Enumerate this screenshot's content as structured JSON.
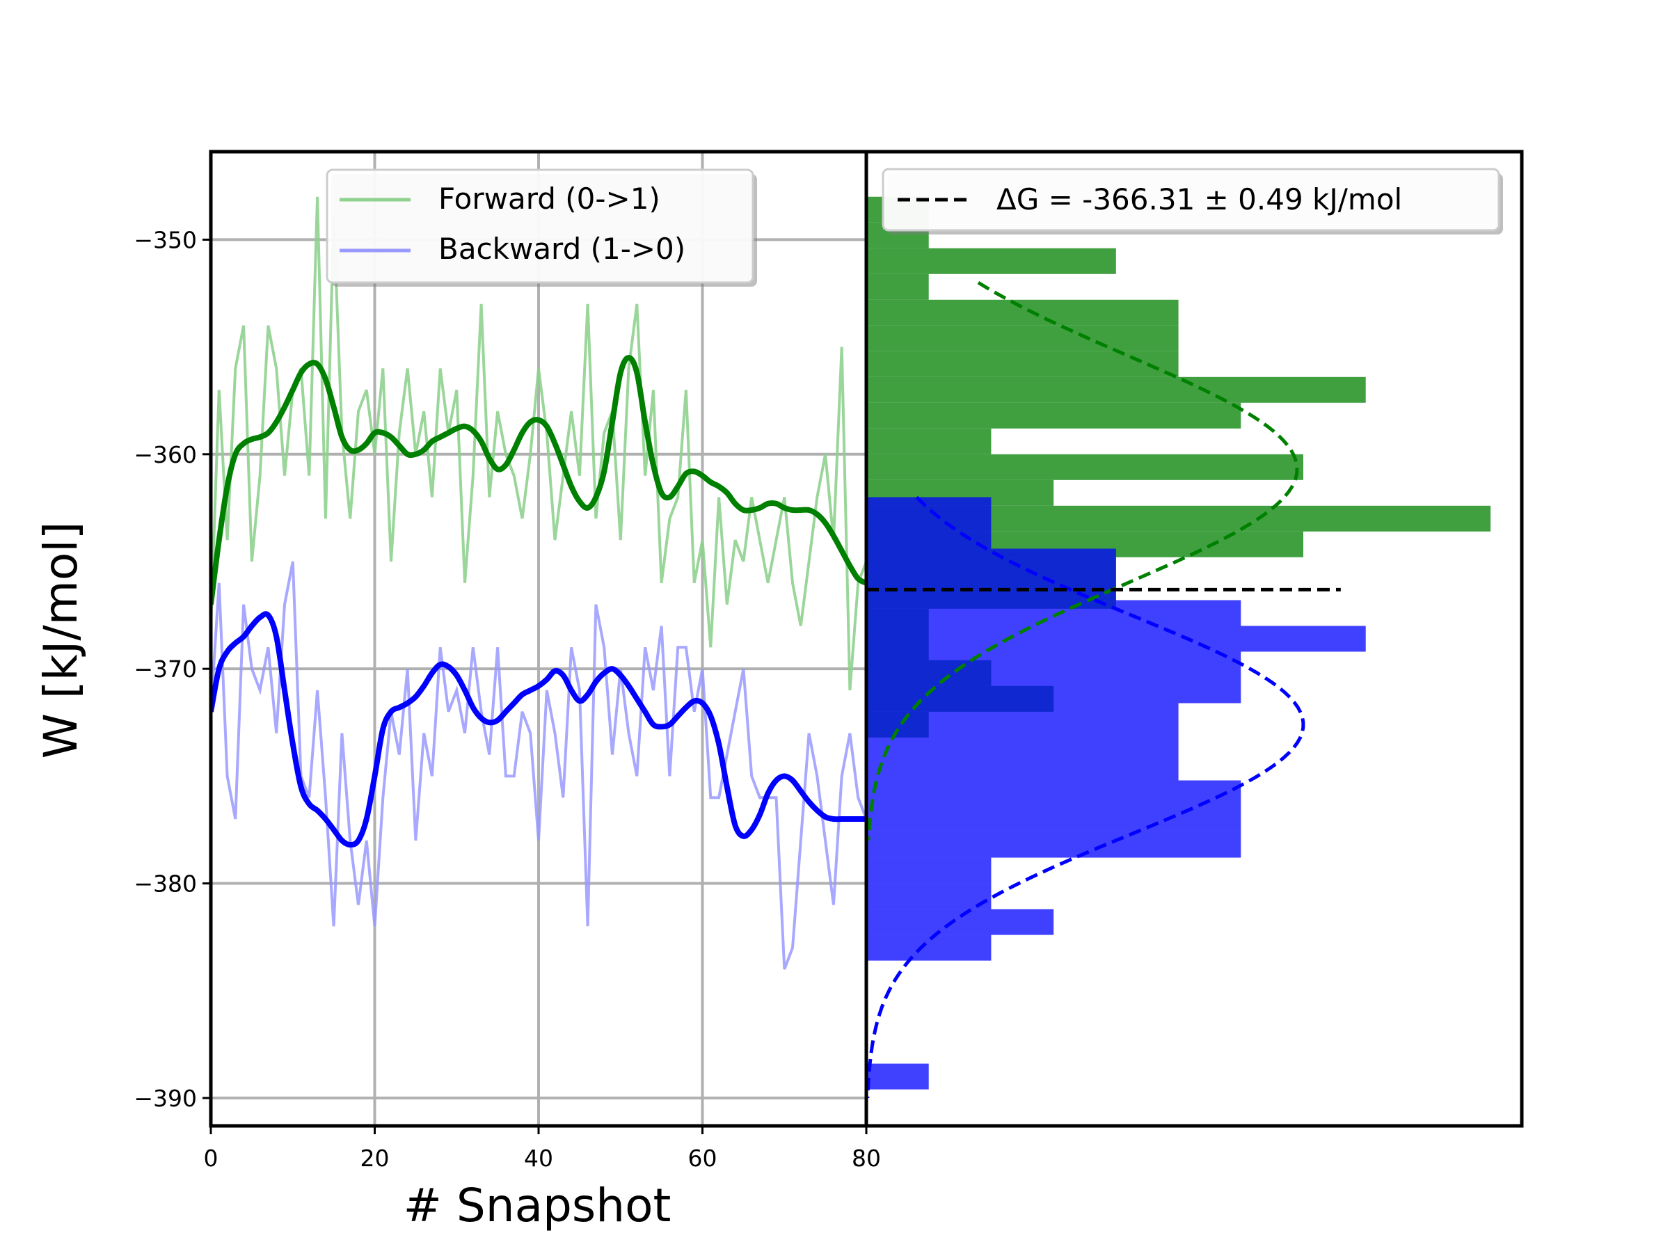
{
  "colors": {
    "forward": "#008000",
    "backward": "#0000ff",
    "forward_raw": "#8fd18f",
    "backward_raw": "#9999ff",
    "forward_hist": "#008000",
    "backward_hist": "#0000ff",
    "delta_g": "#000000",
    "grid": "#b0b0b0",
    "frame": "#000000"
  },
  "chart_data": [
    {
      "type": "line",
      "xlabel": "# Snapshot",
      "ylabel": "W [kJ/mol]",
      "xlim": [
        0,
        80
      ],
      "ylim": [
        -391.3,
        -345.9
      ],
      "xticks": [
        "0",
        "20",
        "40",
        "60",
        "80"
      ],
      "yticks": [
        "−350",
        "−360",
        "−370",
        "−380",
        "−390"
      ],
      "ytick_values": [
        -350,
        -360,
        -370,
        -380,
        -390
      ],
      "xtick_values": [
        0,
        20,
        40,
        60,
        80
      ],
      "grid": true,
      "legend": "top-center",
      "series": [
        {
          "name": "Forward (0->1)",
          "style": "raw",
          "x": [
            0,
            1,
            2,
            3,
            4,
            5,
            6,
            7,
            8,
            9,
            10,
            11,
            12,
            13,
            14,
            15,
            16,
            17,
            18,
            19,
            20,
            21,
            22,
            23,
            24,
            25,
            26,
            27,
            28,
            29,
            30,
            31,
            32,
            33,
            34,
            35,
            36,
            37,
            38,
            39,
            40,
            41,
            42,
            43,
            44,
            45,
            46,
            47,
            48,
            49,
            50,
            51,
            52,
            53,
            54,
            55,
            56,
            57,
            58,
            59,
            60,
            61,
            62,
            63,
            64,
            65,
            66,
            67,
            68,
            69,
            70,
            71,
            72,
            73,
            74,
            75,
            76,
            77,
            78,
            79,
            80
          ],
          "values": [
            -368,
            -357,
            -364,
            -356,
            -354,
            -365,
            -361,
            -354,
            -356,
            -361,
            -357,
            -356,
            -361,
            -348,
            -363,
            -349,
            -359,
            -363,
            -358,
            -357,
            -360,
            -356,
            -365,
            -359,
            -356,
            -360,
            -358,
            -362,
            -356,
            -359,
            -357,
            -366,
            -361,
            -353,
            -362,
            -358,
            -360,
            -361,
            -363,
            -360,
            -356,
            -359,
            -364,
            -361,
            -358,
            -361,
            -353,
            -363,
            -359,
            -358,
            -364,
            -356,
            -353,
            -361,
            -357,
            -366,
            -363,
            -362,
            -357,
            -366,
            -364,
            -369,
            -362,
            -367,
            -364,
            -365,
            -362,
            -364,
            -366,
            -364,
            -362,
            -366,
            -368,
            -365,
            -362,
            -360,
            -364,
            -355,
            -371,
            -366,
            -365
          ]
        },
        {
          "name": "Backward (1->0)",
          "style": "raw",
          "x": [
            0,
            1,
            2,
            3,
            4,
            5,
            6,
            7,
            8,
            9,
            10,
            11,
            12,
            13,
            14,
            15,
            16,
            17,
            18,
            19,
            20,
            21,
            22,
            23,
            24,
            25,
            26,
            27,
            28,
            29,
            30,
            31,
            32,
            33,
            34,
            35,
            36,
            37,
            38,
            39,
            40,
            41,
            42,
            43,
            44,
            45,
            46,
            47,
            48,
            49,
            50,
            51,
            52,
            53,
            54,
            55,
            56,
            57,
            58,
            59,
            60,
            61,
            62,
            63,
            64,
            65,
            66,
            67,
            68,
            69,
            70,
            71,
            72,
            73,
            74,
            75,
            76,
            77,
            78,
            79,
            80
          ],
          "values": [
            -372,
            -366,
            -375,
            -377,
            -367,
            -370,
            -371,
            -369,
            -373,
            -367,
            -365,
            -375,
            -376,
            -371,
            -376,
            -382,
            -373,
            -378,
            -381,
            -378,
            -382,
            -376,
            -372,
            -374,
            -370,
            -378,
            -373,
            -375,
            -369,
            -372,
            -371,
            -373,
            -369,
            -372,
            -374,
            -369,
            -375,
            -375,
            -372,
            -373,
            -378,
            -371,
            -373,
            -376,
            -369,
            -371,
            -382,
            -367,
            -369,
            -374,
            -370,
            -373,
            -375,
            -369,
            -371,
            -368,
            -375,
            -369,
            -369,
            -372,
            -370,
            -376,
            -376,
            -374,
            -372,
            -370,
            -375,
            -376,
            -376,
            -376,
            -384,
            -383,
            -378,
            -373,
            -375,
            -378,
            -381,
            -375,
            -373,
            -376,
            -377
          ]
        },
        {
          "name": "",
          "style": "smoothed",
          "color_key": "forward",
          "x": [
            0,
            1,
            2,
            3,
            4,
            5,
            6,
            7,
            8,
            9,
            10,
            11,
            12,
            13,
            14,
            15,
            16,
            17,
            18,
            19,
            20,
            21,
            22,
            23,
            24,
            25,
            26,
            27,
            28,
            29,
            30,
            31,
            32,
            33,
            34,
            35,
            36,
            37,
            38,
            39,
            40,
            41,
            42,
            43,
            44,
            45,
            46,
            47,
            48,
            49,
            50,
            51,
            52,
            53,
            54,
            55,
            56,
            57,
            58,
            59,
            60,
            61,
            62,
            63,
            64,
            65,
            66,
            67,
            68,
            69,
            70,
            71,
            72,
            73,
            74,
            75,
            76,
            77,
            78,
            79,
            80
          ],
          "values": [
            -367,
            -364,
            -361.5,
            -360,
            -359.5,
            -359.3,
            -359.2,
            -359,
            -358.5,
            -357.8,
            -357,
            -356.2,
            -355.8,
            -355.8,
            -356.5,
            -357.8,
            -359.2,
            -359.8,
            -359.8,
            -359.5,
            -359,
            -359,
            -359.2,
            -359.6,
            -360,
            -360,
            -359.8,
            -359.4,
            -359.2,
            -359,
            -358.8,
            -358.7,
            -358.9,
            -359.4,
            -360.2,
            -360.7,
            -360.5,
            -359.8,
            -359,
            -358.5,
            -358.4,
            -358.7,
            -359.5,
            -360.5,
            -361.5,
            -362.2,
            -362.5,
            -362,
            -360.8,
            -358.5,
            -356.2,
            -355.5,
            -356.2,
            -358.5,
            -360.5,
            -361.8,
            -362,
            -361.5,
            -360.9,
            -360.8,
            -361,
            -361.3,
            -361.5,
            -361.8,
            -362.3,
            -362.6,
            -362.6,
            -362.5,
            -362.3,
            -362.3,
            -362.5,
            -362.6,
            -362.6,
            -362.6,
            -362.8,
            -363.2,
            -363.8,
            -364.5,
            -365.2,
            -365.8,
            -366
          ]
        },
        {
          "name": "",
          "style": "smoothed",
          "color_key": "backward",
          "x": [
            0,
            1,
            2,
            3,
            4,
            5,
            6,
            7,
            8,
            9,
            10,
            11,
            12,
            13,
            14,
            15,
            16,
            17,
            18,
            19,
            20,
            21,
            22,
            23,
            24,
            25,
            26,
            27,
            28,
            29,
            30,
            31,
            32,
            33,
            34,
            35,
            36,
            37,
            38,
            39,
            40,
            41,
            42,
            43,
            44,
            45,
            46,
            47,
            48,
            49,
            50,
            51,
            52,
            53,
            54,
            55,
            56,
            57,
            58,
            59,
            60,
            61,
            62,
            63,
            64,
            65,
            66,
            67,
            68,
            69,
            70,
            71,
            72,
            73,
            74,
            75,
            76,
            77,
            78,
            79,
            80
          ],
          "values": [
            -372,
            -370,
            -369.2,
            -368.8,
            -368.5,
            -368,
            -367.6,
            -367.5,
            -368.5,
            -371,
            -373.5,
            -375.5,
            -376.3,
            -376.6,
            -377,
            -377.5,
            -378,
            -378.2,
            -378,
            -377,
            -375,
            -372.8,
            -372,
            -371.8,
            -371.6,
            -371.3,
            -370.8,
            -370.2,
            -369.8,
            -369.9,
            -370.3,
            -371,
            -371.8,
            -372.3,
            -372.5,
            -372.4,
            -372,
            -371.6,
            -371.2,
            -371,
            -370.8,
            -370.5,
            -370.1,
            -370.3,
            -371,
            -371.5,
            -371.2,
            -370.6,
            -370.2,
            -370,
            -370.3,
            -370.8,
            -371.4,
            -372,
            -372.6,
            -372.7,
            -372.6,
            -372.2,
            -371.8,
            -371.5,
            -371.6,
            -372.2,
            -373.5,
            -375.5,
            -377.3,
            -377.8,
            -377.5,
            -376.8,
            -375.8,
            -375.2,
            -375,
            -375.2,
            -375.7,
            -376.2,
            -376.6,
            -376.9,
            -377,
            -377,
            -377,
            -377,
            -377
          ]
        }
      ]
    },
    {
      "type": "bar",
      "orientation": "horizontal",
      "legend": "top-right",
      "legend_label": "ΔG = -366.31 ± 0.49 kJ/mol",
      "delta_g": -366.31,
      "delta_g_error": 0.49,
      "bin_width": 1.2,
      "xlim": [
        0,
        10.5
      ],
      "forward_bins": [
        {
          "center": -348.6,
          "count": 1
        },
        {
          "center": -349.8,
          "count": 1
        },
        {
          "center": -351.0,
          "count": 4
        },
        {
          "center": -352.2,
          "count": 1
        },
        {
          "center": -353.4,
          "count": 5
        },
        {
          "center": -354.6,
          "count": 5
        },
        {
          "center": -355.8,
          "count": 5
        },
        {
          "center": -357.0,
          "count": 8
        },
        {
          "center": -358.2,
          "count": 6
        },
        {
          "center": -359.4,
          "count": 2
        },
        {
          "center": -360.6,
          "count": 7
        },
        {
          "center": -361.8,
          "count": 3
        },
        {
          "center": -363.0,
          "count": 10
        },
        {
          "center": -364.2,
          "count": 7
        },
        {
          "center": -365.4,
          "count": 4
        },
        {
          "center": -366.6,
          "count": 4
        },
        {
          "center": -367.8,
          "count": 1
        },
        {
          "center": -369.0,
          "count": 1
        },
        {
          "center": -370.2,
          "count": 2
        },
        {
          "center": -371.4,
          "count": 3
        },
        {
          "center": -372.6,
          "count": 1
        },
        {
          "center": -373.8,
          "count": 0
        }
      ],
      "backward_bins": [
        {
          "center": -362.6,
          "count": 2
        },
        {
          "center": -363.8,
          "count": 2
        },
        {
          "center": -365.0,
          "count": 4
        },
        {
          "center": -366.2,
          "count": 4
        },
        {
          "center": -367.4,
          "count": 6
        },
        {
          "center": -368.6,
          "count": 8
        },
        {
          "center": -369.8,
          "count": 6
        },
        {
          "center": -371.0,
          "count": 6
        },
        {
          "center": -372.2,
          "count": 5
        },
        {
          "center": -373.4,
          "count": 5
        },
        {
          "center": -374.6,
          "count": 5
        },
        {
          "center": -375.8,
          "count": 6
        },
        {
          "center": -377.0,
          "count": 6
        },
        {
          "center": -378.2,
          "count": 6
        },
        {
          "center": -379.4,
          "count": 2
        },
        {
          "center": -380.6,
          "count": 2
        },
        {
          "center": -381.8,
          "count": 3
        },
        {
          "center": -383.0,
          "count": 2
        },
        {
          "center": -384.2,
          "count": 0
        },
        {
          "center": -385.4,
          "count": 0
        },
        {
          "center": -386.6,
          "count": 0
        },
        {
          "center": -387.8,
          "count": 0
        },
        {
          "center": -389.0,
          "count": 1
        }
      ],
      "forward_fit": {
        "mean": -360.7,
        "sigma": 5.3,
        "peak": 6.9,
        "y_range": [
          -352,
          -378
        ]
      },
      "backward_fit": {
        "mean": -372.6,
        "sigma": 5.1,
        "peak": 7.0,
        "y_range": [
          -362,
          -390
        ]
      }
    }
  ]
}
